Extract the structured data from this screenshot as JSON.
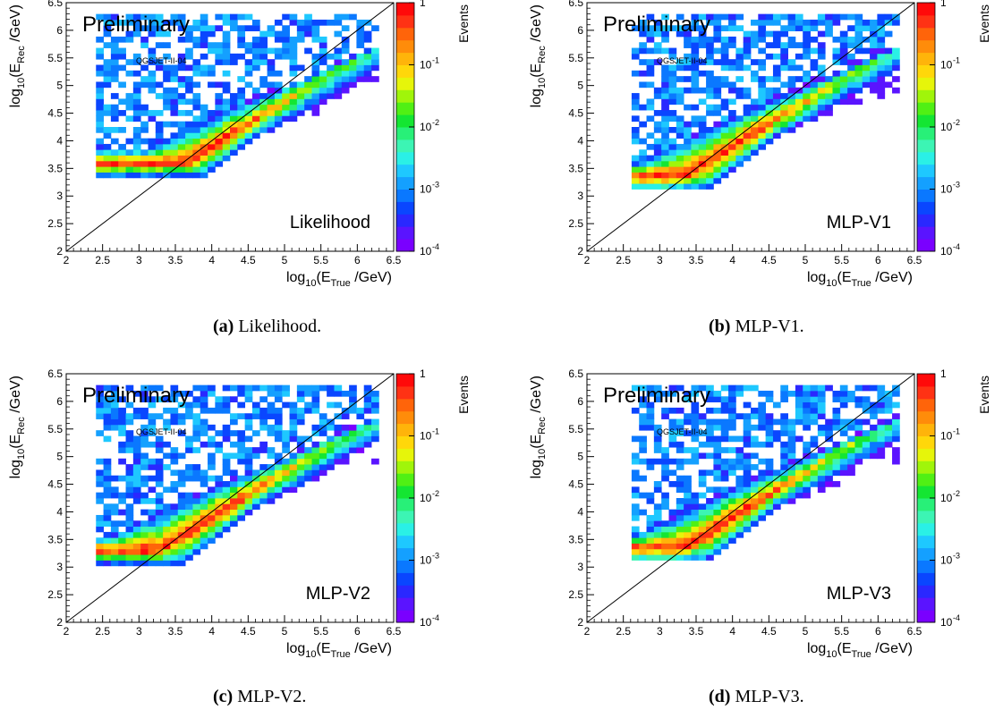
{
  "figure": {
    "captions": [
      {
        "label": "(a)",
        "text": "Likelihood."
      },
      {
        "label": "(b)",
        "text": "MLP-V1."
      },
      {
        "label": "(c)",
        "text": "MLP-V2."
      },
      {
        "label": "(d)",
        "text": "MLP-V3."
      }
    ]
  },
  "colors": {
    "palette": [
      "#7a00ff",
      "#5a14ff",
      "#2a28ff",
      "#0a46ff",
      "#0a78ff",
      "#14a0ff",
      "#1ec8ff",
      "#2af0e6",
      "#3cf5b4",
      "#28f078",
      "#14e632",
      "#50f014",
      "#a0f50a",
      "#e6f50a",
      "#ffd70a",
      "#ffb40a",
      "#ff8c0a",
      "#ff640a",
      "#ff3214",
      "#ff0a0a"
    ]
  },
  "chart_data": [
    {
      "type": "heatmap",
      "panel": "a",
      "overlay_text": {
        "preliminary": "Preliminary",
        "generator": "QGSJET-II-04",
        "method": "Likelihood"
      },
      "x": {
        "range": [
          2,
          6.5
        ],
        "ticks": [
          "2",
          "2.5",
          "3",
          "3.5",
          "4",
          "4.5",
          "5",
          "5.5",
          "6",
          "6.5"
        ]
      },
      "y": {
        "range": [
          2,
          6.5
        ],
        "ticks": [
          "2",
          "2.5",
          "3",
          "3.5",
          "4",
          "4.5",
          "5",
          "5.5",
          "6",
          "6.5"
        ]
      },
      "z": {
        "label": "Events",
        "log": true,
        "range": [
          0.0001,
          1
        ],
        "ticks": [
          "10^{-4}",
          "10^{-3}",
          "10^{-2}",
          "10^{-1}",
          "1"
        ]
      },
      "diagonal_line": true,
      "distribution": {
        "x_min": 2.45,
        "x_max": 6.3,
        "floor": 3.35,
        "floor_fraction": 0.27,
        "spread": 0.95
      }
    },
    {
      "type": "heatmap",
      "panel": "b",
      "overlay_text": {
        "preliminary": "Preliminary",
        "generator": "QGSJET-II-04",
        "method": "MLP-V1"
      },
      "x": {
        "range": [
          2,
          6.5
        ],
        "ticks": [
          "2",
          "2.5",
          "3",
          "3.5",
          "4",
          "4.5",
          "5",
          "5.5",
          "6",
          "6.5"
        ]
      },
      "y": {
        "range": [
          2,
          6.5
        ],
        "ticks": [
          "2",
          "2.5",
          "3",
          "3.5",
          "4",
          "4.5",
          "5",
          "5.5",
          "6",
          "6.5"
        ]
      },
      "z": {
        "label": "Events",
        "log": true,
        "range": [
          0.0001,
          1
        ],
        "ticks": [
          "10^{-4}",
          "10^{-3}",
          "10^{-2}",
          "10^{-1}",
          "1"
        ]
      },
      "diagonal_line": true,
      "distribution": {
        "x_min": 2.6,
        "x_max": 6.3,
        "floor": 3.1,
        "floor_fraction": 0.35,
        "spread": 0.9
      }
    },
    {
      "type": "heatmap",
      "panel": "c",
      "overlay_text": {
        "preliminary": "Preliminary",
        "generator": "QGSJET-II-04",
        "method": "MLP-V2"
      },
      "x": {
        "range": [
          2,
          6.5
        ],
        "ticks": [
          "2",
          "2.5",
          "3",
          "3.5",
          "4",
          "4.5",
          "5",
          "5.5",
          "6",
          "6.5"
        ]
      },
      "y": {
        "range": [
          2,
          6.5
        ],
        "ticks": [
          "2",
          "2.5",
          "3",
          "3.5",
          "4",
          "4.5",
          "5",
          "5.5",
          "6",
          "6.5"
        ]
      },
      "z": {
        "label": "Events",
        "log": true,
        "range": [
          0.0001,
          1
        ],
        "ticks": [
          "10^{-4}",
          "10^{-3}",
          "10^{-2}",
          "10^{-1}",
          "1"
        ]
      },
      "diagonal_line": true,
      "distribution": {
        "x_min": 2.4,
        "x_max": 6.3,
        "floor": 3.05,
        "floor_fraction": 0.4,
        "spread": 0.9
      }
    },
    {
      "type": "heatmap",
      "panel": "d",
      "overlay_text": {
        "preliminary": "Preliminary",
        "generator": "QGSJET-II-04",
        "method": "MLP-V3"
      },
      "x": {
        "range": [
          2,
          6.5
        ],
        "ticks": [
          "2",
          "2.5",
          "3",
          "3.5",
          "4",
          "4.5",
          "5",
          "5.5",
          "6",
          "6.5"
        ]
      },
      "y": {
        "range": [
          2,
          6.5
        ],
        "ticks": [
          "2",
          "2.5",
          "3",
          "3.5",
          "4",
          "4.5",
          "5",
          "5.5",
          "6",
          "6.5"
        ]
      },
      "z": {
        "label": "Events",
        "log": true,
        "range": [
          0.0001,
          1
        ],
        "ticks": [
          "10^{-4}",
          "10^{-3}",
          "10^{-2}",
          "10^{-1}",
          "1"
        ]
      },
      "diagonal_line": true,
      "distribution": {
        "x_min": 2.6,
        "x_max": 6.3,
        "floor": 3.1,
        "floor_fraction": 0.38,
        "spread": 0.9
      }
    }
  ]
}
